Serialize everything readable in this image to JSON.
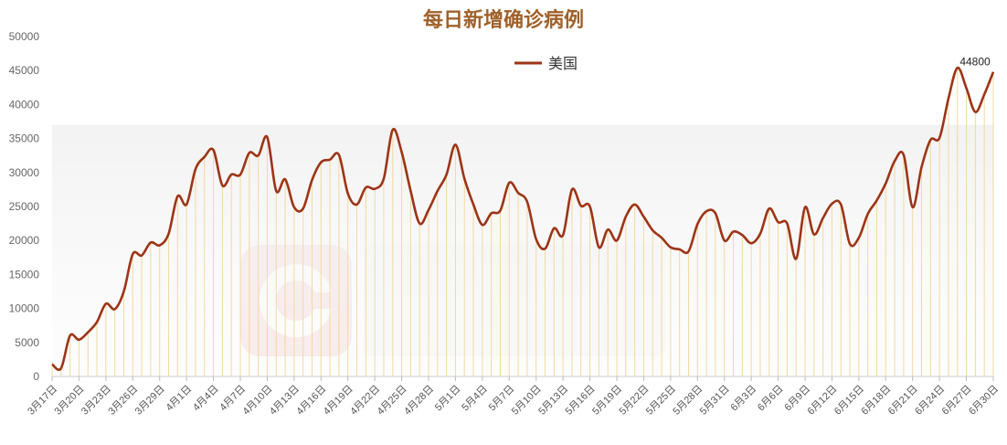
{
  "chart_data": {
    "type": "line",
    "title": "每日新增确诊病例",
    "legend": {
      "placement": "top-center",
      "entries": [
        "美国"
      ]
    },
    "series": [
      {
        "name": "美国",
        "color": "#9c3416",
        "values": [
          1800,
          1200,
          6000,
          5400,
          6500,
          8000,
          10700,
          9900,
          12500,
          18000,
          17800,
          19700,
          19300,
          21000,
          26500,
          25300,
          30500,
          32300,
          33300,
          28100,
          29700,
          29700,
          32900,
          32500,
          35200,
          27300,
          29000,
          24900,
          24700,
          28900,
          31500,
          31900,
          32600,
          26900,
          25300,
          27800,
          27600,
          29100,
          36300,
          33000,
          27300,
          22500,
          24500,
          27300,
          29700,
          34100,
          29100,
          25300,
          22300,
          24000,
          24400,
          28500,
          27000,
          25700,
          20200,
          18800,
          21800,
          20800,
          27500,
          25100,
          25000,
          19000,
          21600,
          20000,
          23500,
          25300,
          23500,
          21500,
          20400,
          19000,
          18700,
          18400,
          22400,
          24300,
          24000,
          20000,
          21300,
          20800,
          19600,
          21000,
          24700,
          22700,
          22500,
          17300,
          24900,
          20900,
          23300,
          25400,
          25300,
          19500,
          20400,
          23900,
          25900,
          28400,
          31700,
          32600,
          24900,
          30800,
          34800,
          35100,
          40900,
          45400,
          42400,
          38900,
          41500,
          44800
        ],
        "last_label": "44800"
      }
    ],
    "x_start": "3月17日",
    "x_end": "6月30日",
    "x_tick_labels": [
      "3月17日",
      "3月20日",
      "3月23日",
      "3月26日",
      "3月29日",
      "4月1日",
      "4月4日",
      "4月7日",
      "4月10日",
      "4月13日",
      "4月16日",
      "4月19日",
      "4月22日",
      "4月25日",
      "4月28日",
      "5月1日",
      "5月4日",
      "5月7日",
      "5月10日",
      "5月13日",
      "5月16日",
      "5月19日",
      "5月22日",
      "5月25日",
      "5月28日",
      "5月31日",
      "6月3日",
      "6月6日",
      "6月9日",
      "6月12日",
      "6月15日",
      "6月18日",
      "6月21日",
      "6月24日",
      "6月27日",
      "6月30日"
    ],
    "x_tick_every": 3,
    "y_ticks": [
      0,
      5000,
      10000,
      15000,
      20000,
      25000,
      30000,
      35000,
      40000,
      45000,
      50000
    ],
    "ylim": [
      0,
      50000
    ],
    "grid": false
  },
  "colors": {
    "title": "#a0612a",
    "line": "#9c3416",
    "drop_lines": "#f3d9a0",
    "watermark": "#e9b3b3"
  }
}
